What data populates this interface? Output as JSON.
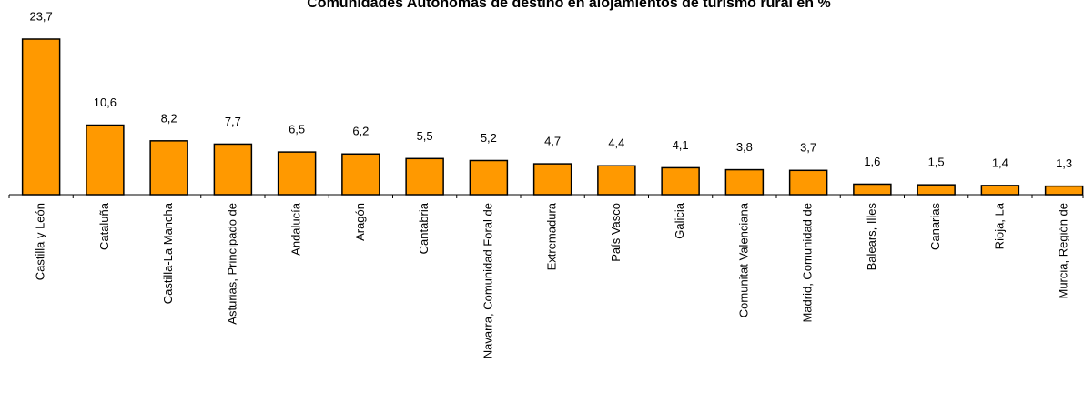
{
  "chart_data": {
    "type": "bar",
    "title": "Comunidades Autónomas de destino en alojamientos de turismo rural en %",
    "categories": [
      "Castilla y León",
      "Cataluña",
      "Castilla-La Mancha",
      "Asturias, Principado de",
      "Andalucía",
      "Aragón",
      "Cantabria",
      "Navarra, Comunidad Foral de",
      "Extremadura",
      "País Vasco",
      "Galicia",
      "Comunitat Valenciana",
      "Madrid, Comunidad de",
      "Balears, Illes",
      "Canarias",
      "Rioja, La",
      "Murcia, Región de"
    ],
    "values": [
      23.7,
      10.6,
      8.2,
      7.7,
      6.5,
      6.2,
      5.5,
      5.2,
      4.7,
      4.4,
      4.1,
      3.8,
      3.7,
      1.6,
      1.5,
      1.4,
      1.3
    ],
    "value_labels": [
      "23,7",
      "10,6",
      "8,2",
      "7,7",
      "6,5",
      "6,2",
      "5,5",
      "5,2",
      "4,7",
      "4,4",
      "4,1",
      "3,8",
      "3,7",
      "1,6",
      "1,5",
      "1,4",
      "1,3"
    ],
    "color": "#ff9900"
  }
}
